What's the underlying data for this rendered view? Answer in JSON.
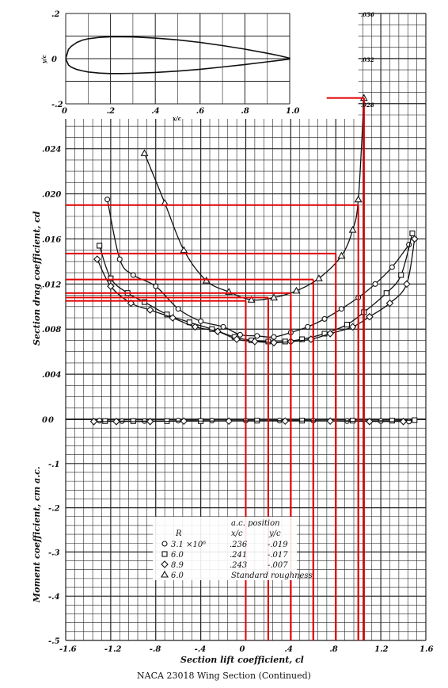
{
  "caption": "NACA 23018 Wing Section (Continued)",
  "chart_data": [
    {
      "type": "line",
      "title": "",
      "xlabel": "x/c",
      "ylabel": "y/c",
      "xlim": [
        0,
        1.0
      ],
      "ylim": [
        -0.2,
        0.2
      ],
      "x_ticks": [
        "0",
        ".2",
        ".4",
        ".6",
        ".8",
        "1.0"
      ],
      "y_ticks": [
        ".2",
        "0",
        "-.2"
      ],
      "series": [
        {
          "x": [
            0,
            0.0125,
            0.025,
            0.05,
            0.075,
            0.1,
            0.15,
            0.2,
            0.25,
            0.3,
            0.4,
            0.5,
            0.6,
            0.7,
            0.8,
            0.9,
            0.95,
            1.0
          ],
          "upper": [
            0,
            0.041,
            0.055,
            0.072,
            0.082,
            0.088,
            0.094,
            0.097,
            0.097,
            0.096,
            0.091,
            0.083,
            0.072,
            0.058,
            0.042,
            0.024,
            0.014,
            0.002
          ],
          "lower": [
            0,
            -0.028,
            -0.038,
            -0.048,
            -0.054,
            -0.059,
            -0.064,
            -0.066,
            -0.066,
            -0.065,
            -0.061,
            -0.055,
            -0.047,
            -0.037,
            -0.026,
            -0.014,
            -0.008,
            -0.002
          ]
        }
      ]
    },
    {
      "type": "scatter",
      "xlabel": "Section lift coefficient, cl",
      "ylabel_drag": "Section drag coefficient, cd",
      "ylabel_moment": "Moment coefficient, cm a.c.",
      "xlim": [
        -1.6,
        1.6
      ],
      "drag_ylim": [
        0,
        0.036
      ],
      "moment_ylim": [
        -0.5,
        0
      ],
      "x_ticks": [
        "-1.6",
        "-1.2",
        "-.8",
        "-.4",
        "0",
        ".4",
        ".8",
        "1.2",
        "1.6"
      ],
      "drag_ticks": [
        "0",
        ".004",
        ".008",
        ".012",
        ".016",
        ".020",
        ".024",
        ".028",
        ".032",
        ".036"
      ],
      "moment_ticks": [
        "0",
        "-.1",
        "-.2",
        "-.3",
        "-.4",
        "-.5"
      ],
      "legend": {
        "header_r": "R",
        "header_ac": "a.c. position",
        "header_xc": "x/c",
        "header_yc": "y/c",
        "rows": [
          {
            "marker": "circle",
            "r": "3.1 ×10⁶",
            "xc": ".236",
            "yc": "-.019"
          },
          {
            "marker": "square",
            "r": "6.0",
            "xc": ".241",
            "yc": "-.017"
          },
          {
            "marker": "diamond",
            "r": "8.9",
            "xc": ".243",
            "yc": "-.007"
          },
          {
            "marker": "triangle",
            "r": "6.0",
            "note": "Standard roughness"
          }
        ]
      },
      "drag_series": [
        {
          "marker": "circle",
          "x": [
            -1.23,
            -1.12,
            -1.0,
            -0.8,
            -0.6,
            -0.4,
            -0.2,
            -0.05,
            0.1,
            0.25,
            0.4,
            0.55,
            0.7,
            0.85,
            1.0,
            1.15,
            1.3,
            1.45
          ],
          "y": [
            0.0195,
            0.0142,
            0.0128,
            0.0118,
            0.0098,
            0.0087,
            0.0082,
            0.0075,
            0.0074,
            0.0073,
            0.0077,
            0.0082,
            0.0089,
            0.0098,
            0.0108,
            0.012,
            0.0135,
            0.0155
          ]
        },
        {
          "marker": "square",
          "x": [
            -1.3,
            -1.2,
            -1.05,
            -0.9,
            -0.7,
            -0.5,
            -0.3,
            -0.1,
            0.05,
            0.2,
            0.35,
            0.5,
            0.7,
            0.9,
            1.05,
            1.25,
            1.38,
            1.48
          ],
          "y": [
            0.0154,
            0.0125,
            0.0112,
            0.0104,
            0.0093,
            0.0086,
            0.008,
            0.0073,
            0.007,
            0.0069,
            0.0069,
            0.0071,
            0.0076,
            0.0084,
            0.0095,
            0.0112,
            0.0128,
            0.0165
          ]
        },
        {
          "marker": "diamond",
          "x": [
            -1.32,
            -1.2,
            -1.02,
            -0.85,
            -0.65,
            -0.45,
            -0.25,
            -0.08,
            0.08,
            0.25,
            0.4,
            0.58,
            0.75,
            0.95,
            1.1,
            1.28,
            1.43,
            1.5
          ],
          "y": [
            0.0142,
            0.0118,
            0.0103,
            0.0097,
            0.009,
            0.0082,
            0.0078,
            0.0071,
            0.0069,
            0.0068,
            0.0069,
            0.0071,
            0.0076,
            0.0082,
            0.0091,
            0.0103,
            0.012,
            0.016
          ]
        },
        {
          "marker": "triangle",
          "x": [
            -0.9,
            -0.72,
            -0.55,
            -0.35,
            -0.15,
            0.05,
            0.25,
            0.45,
            0.65,
            0.85,
            0.95,
            1.0,
            1.05
          ],
          "y": [
            0.0236,
            0.0192,
            0.015,
            0.0123,
            0.0113,
            0.0106,
            0.0108,
            0.0114,
            0.0125,
            0.0145,
            0.0168,
            0.0195,
            0.0285
          ]
        }
      ],
      "moment_series": [
        {
          "marker": "circle",
          "x": [
            -1.3,
            -1.1,
            -0.9,
            -0.6,
            -0.3,
            0,
            0.3,
            0.6,
            0.9,
            1.2,
            1.45
          ],
          "y": [
            -0.003,
            -0.004,
            -0.004,
            -0.003,
            -0.003,
            -0.003,
            -0.003,
            -0.003,
            -0.004,
            -0.004,
            -0.005
          ]
        },
        {
          "marker": "square",
          "x": [
            -1.25,
            -1.0,
            -0.7,
            -0.4,
            0.1,
            0.5,
            0.95,
            1.3,
            1.5
          ],
          "y": [
            -0.004,
            -0.004,
            -0.004,
            -0.004,
            -0.003,
            -0.003,
            -0.003,
            -0.003,
            -0.002
          ]
        },
        {
          "marker": "diamond",
          "x": [
            -1.35,
            -1.15,
            -0.85,
            -0.55,
            -0.15,
            0.35,
            0.75,
            1.1,
            1.4
          ],
          "y": [
            -0.005,
            -0.005,
            -0.005,
            -0.004,
            -0.004,
            -0.004,
            -0.004,
            -0.005,
            -0.005
          ]
        }
      ],
      "annotation_overlay": {
        "color": "#e00000",
        "vertical_x": [
          0.0,
          0.2,
          0.4,
          0.6,
          0.8,
          1.0,
          1.05
        ],
        "levels": [
          {
            "cd": 0.0105,
            "x_to": 0.0
          },
          {
            "cd": 0.0108,
            "x_to": 0.2
          },
          {
            "cd": 0.0112,
            "x_to": 0.4
          },
          {
            "cd": 0.0124,
            "x_to": 0.6
          },
          {
            "cd": 0.0147,
            "x_to": 0.8
          },
          {
            "cd": 0.019,
            "x_to": 1.0
          },
          {
            "cd": 0.0285,
            "x_to": 1.05
          }
        ]
      }
    }
  ]
}
